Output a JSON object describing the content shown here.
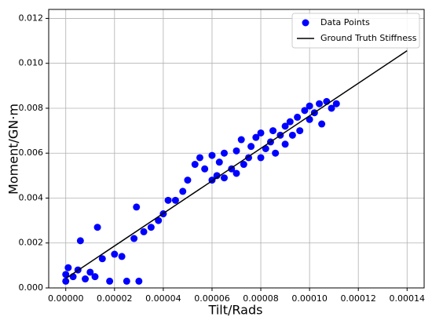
{
  "chart_data": {
    "type": "scatter",
    "x_label": "Tilt/Rads",
    "y_label": "Moment/GN·m",
    "xlim": [
      -7e-06,
      0.000147
    ],
    "ylim": [
      0,
      0.0124
    ],
    "xticks": [
      {
        "value": 0,
        "label": "0.00000"
      },
      {
        "value": 2e-05,
        "label": "0.00002"
      },
      {
        "value": 4e-05,
        "label": "0.00004"
      },
      {
        "value": 6e-05,
        "label": "0.00006"
      },
      {
        "value": 8e-05,
        "label": "0.00008"
      },
      {
        "value": 0.0001,
        "label": "0.00010"
      },
      {
        "value": 0.00012,
        "label": "0.00012"
      },
      {
        "value": 0.00014,
        "label": "0.00014"
      }
    ],
    "yticks": [
      {
        "value": 0,
        "label": "0.000"
      },
      {
        "value": 0.002,
        "label": "0.002"
      },
      {
        "value": 0.004,
        "label": "0.004"
      },
      {
        "value": 0.006,
        "label": "0.006"
      },
      {
        "value": 0.008,
        "label": "0.008"
      },
      {
        "value": 0.01,
        "label": "0.010"
      },
      {
        "value": 0.012,
        "label": "0.012"
      }
    ],
    "grid": true,
    "legend": "upper right",
    "series": [
      {
        "name": "Data Points",
        "color": "#0000ff",
        "kind": "scatter",
        "x": [
          0,
          0,
          1e-06,
          3e-06,
          5e-06,
          6e-06,
          8e-06,
          1e-05,
          1.2e-05,
          1.3e-05,
          1.5e-05,
          1.8e-05,
          2e-05,
          2.3e-05,
          2.5e-05,
          2.8e-05,
          2.9e-05,
          3e-05,
          3.2e-05,
          3.5e-05,
          3.8e-05,
          4e-05,
          4.2e-05,
          4.5e-05,
          4.8e-05,
          5e-05,
          5.3e-05,
          5.5e-05,
          5.7e-05,
          6e-05,
          6e-05,
          6.2e-05,
          6.3e-05,
          6.5e-05,
          6.5e-05,
          6.8e-05,
          7e-05,
          7e-05,
          7.2e-05,
          7.3e-05,
          7.5e-05,
          7.6e-05,
          7.8e-05,
          8e-05,
          8e-05,
          8.2e-05,
          8.4e-05,
          8.5e-05,
          8.6e-05,
          8.8e-05,
          9e-05,
          9e-05,
          9.2e-05,
          9.3e-05,
          9.5e-05,
          9.6e-05,
          9.8e-05,
          0.0001,
          0.0001,
          0.000102,
          0.000104,
          0.000105,
          0.000107,
          0.000109,
          0.000111
        ],
        "values": [
          0.0003,
          0.0006,
          0.0009,
          0.0005,
          0.0008,
          0.0021,
          0.0004,
          0.0007,
          0.0005,
          0.0027,
          0.0013,
          0.0003,
          0.0015,
          0.0014,
          0.0003,
          0.0022,
          0.0036,
          0.0003,
          0.0025,
          0.0027,
          0.003,
          0.0033,
          0.0039,
          0.0039,
          0.0043,
          0.0048,
          0.0055,
          0.0058,
          0.0053,
          0.0059,
          0.0048,
          0.005,
          0.0056,
          0.006,
          0.0049,
          0.0053,
          0.0061,
          0.0051,
          0.0066,
          0.0055,
          0.0058,
          0.0063,
          0.0067,
          0.0058,
          0.0069,
          0.0062,
          0.0065,
          0.007,
          0.006,
          0.0068,
          0.0072,
          0.0064,
          0.0074,
          0.0068,
          0.0076,
          0.007,
          0.0079,
          0.0075,
          0.0081,
          0.0078,
          0.0082,
          0.0073,
          0.0083,
          0.008,
          0.0082
        ]
      },
      {
        "name": "Ground Truth Stiffness",
        "color": "#000000",
        "kind": "line",
        "x": [
          0,
          0.00014
        ],
        "values": [
          0.00042,
          0.01056
        ]
      }
    ]
  }
}
